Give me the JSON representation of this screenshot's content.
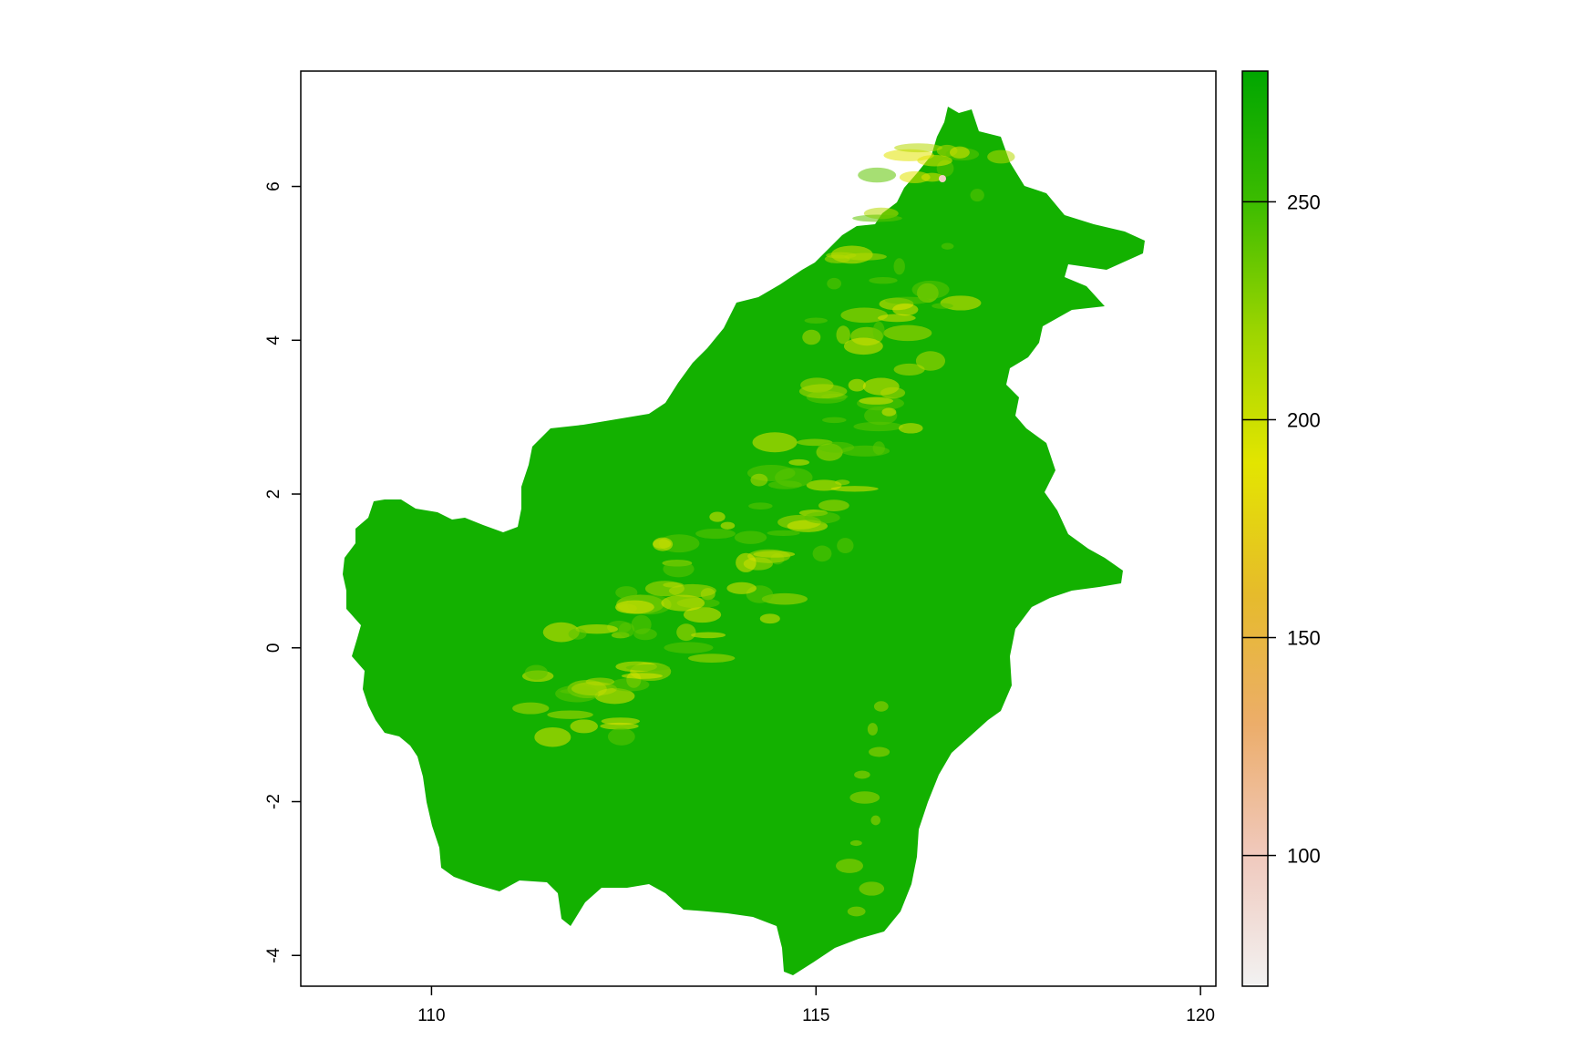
{
  "map": {
    "type": "raster",
    "x_axis": {
      "range": [
        108.3,
        120.2
      ],
      "ticks": [
        "110",
        "115",
        "120"
      ],
      "tick_values": [
        110,
        115,
        120
      ]
    },
    "y_axis": {
      "range": [
        -4.4,
        7.5
      ],
      "ticks": [
        "-4",
        "-2",
        "0",
        "2",
        "4",
        "6"
      ],
      "tick_values": [
        -4,
        -2,
        0,
        2,
        4,
        6
      ]
    },
    "fill_color": "#13b100",
    "highland_colors": [
      "#5dc400",
      "#b6d800",
      "#e2e300"
    ],
    "peak_color": "#f2cfc6"
  },
  "legend": {
    "range": [
      70,
      280
    ],
    "ticks": [
      "100",
      "150",
      "200",
      "250"
    ],
    "tick_values": [
      100,
      150,
      200,
      250
    ],
    "colors": [
      "#f2f2f2",
      "#f0c9bd",
      "#ecad6a",
      "#e6bb2b",
      "#e3e500",
      "#9dd500",
      "#3cbc00",
      "#00a600"
    ]
  }
}
